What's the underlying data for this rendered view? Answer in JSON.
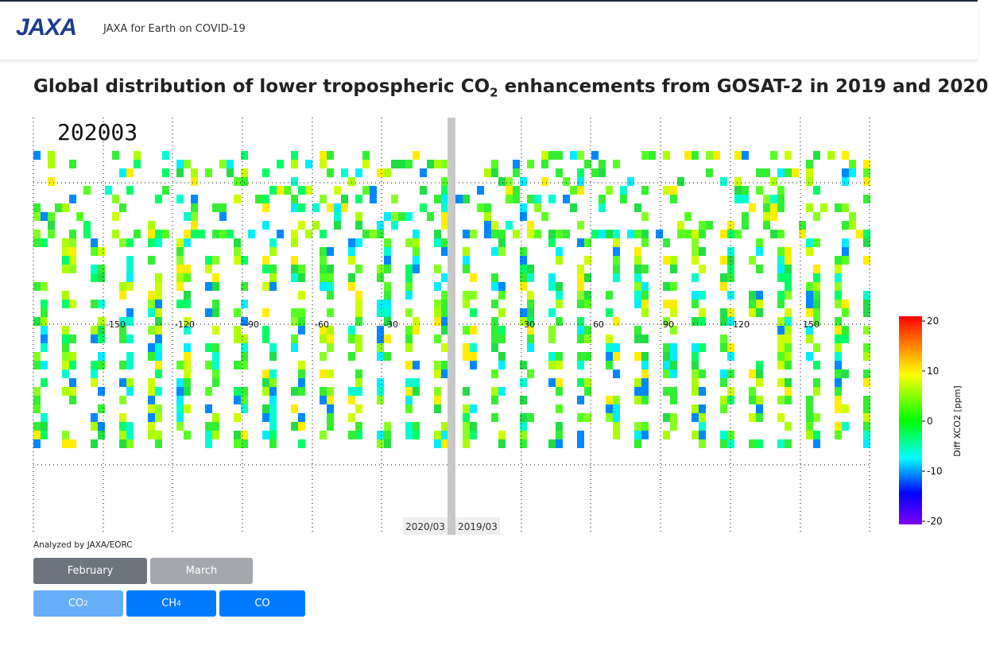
{
  "header": {
    "logo": "JAXA",
    "site_title": "JAXA for Earth on COVID-19"
  },
  "page_title": {
    "main": "Global distribution of lower tropospheric CO",
    "sub": "2",
    "rest": " enhancements from GOSAT-2 in 2019 and 2020"
  },
  "map": {
    "stamp": "202003",
    "longitude_labels": [
      "-150",
      "-120",
      "-90",
      "-60",
      "-30",
      "30",
      "60",
      "90",
      "120",
      "150"
    ],
    "left_label": "2020/03",
    "right_label": "2019/03",
    "colorbar": {
      "ticks": [
        "20",
        "10",
        "0",
        "-10",
        "-20"
      ],
      "label": "Diff XCO2 [ppm]"
    }
  },
  "credit": "Analyzed by JAXA/EORC",
  "month_buttons": [
    "February",
    "March"
  ],
  "gas_buttons": [
    {
      "main": "CO",
      "sub": "2"
    },
    {
      "main": "CH",
      "sub": "4"
    },
    {
      "main": "CO",
      "sub": ""
    }
  ]
}
